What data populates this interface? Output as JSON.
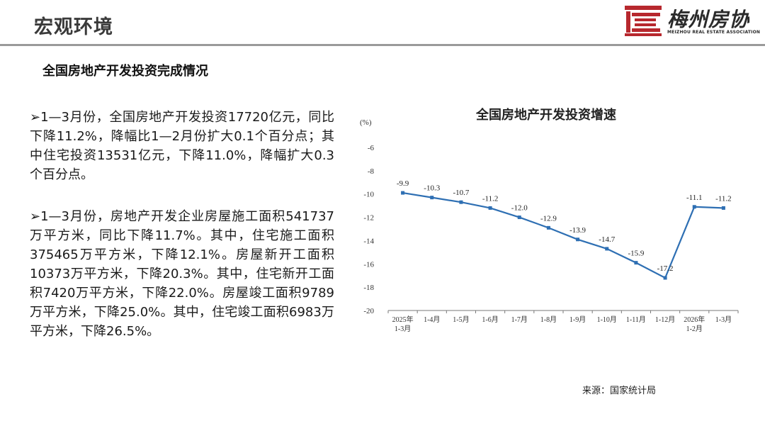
{
  "header": {
    "title": "宏观环境",
    "logo_cn": "梅州房协",
    "logo_en": "MEIZHOU REAL ESTATE ASSOCIATION"
  },
  "section_title": "全国房地产开发投资完成情况",
  "paragraphs": [
    "➢1—3月份，全国房地产开发投资17720亿元，同比下降11.2%，降幅比1—2月份扩大0.1个百分点；其中住宅投资13531亿元，下降11.0%，降幅扩大0.3个百分点。",
    "➢1—3月份，房地产开发企业房屋施工面积541737万平方米，同比下降11.7%。其中，住宅施工面积375465万平方米，下降12.1%。房屋新开工面积10373万平方米，下降20.3%。其中，住宅新开工面积7420万平方米，下降22.0%。房屋竣工面积9789万平方米，下降25.0%。其中，住宅竣工面积6983万平方米，下降26.5%。"
  ],
  "source": "来源：国家统计局",
  "colors": {
    "line": "#2e6fb3",
    "axis": "#7a7a7a",
    "logo_red": "#b7282e"
  },
  "chart_data": {
    "type": "line",
    "title": "全国房地产开发投资增速",
    "ylabel": "(%)",
    "ylim": [
      -20,
      -6
    ],
    "yticks": [
      -6,
      -8,
      -10,
      -12,
      -14,
      -16,
      -18,
      -20
    ],
    "categories": [
      [
        "2025年",
        "1-3月"
      ],
      [
        "1-4月"
      ],
      [
        "1-5月"
      ],
      [
        "1-6月"
      ],
      [
        "1-7月"
      ],
      [
        "1-8月"
      ],
      [
        "1-9月"
      ],
      [
        "1-10月"
      ],
      [
        "1-11月"
      ],
      [
        "1-12月"
      ],
      [
        "2026年",
        "1-2月"
      ],
      [
        "1-3月"
      ]
    ],
    "values": [
      -9.9,
      -10.3,
      -10.7,
      -11.2,
      -12.0,
      -12.9,
      -13.9,
      -14.7,
      -15.9,
      -17.2,
      -11.1,
      -11.2
    ],
    "value_labels": [
      "-9.9",
      "-10.3",
      "-10.7",
      "-11.2",
      "-12.0",
      "-12.9",
      "-13.9",
      "-14.7",
      "-15.9",
      "-17.2",
      "-11.1",
      "-11.2"
    ],
    "grid": false,
    "legend": "none"
  }
}
